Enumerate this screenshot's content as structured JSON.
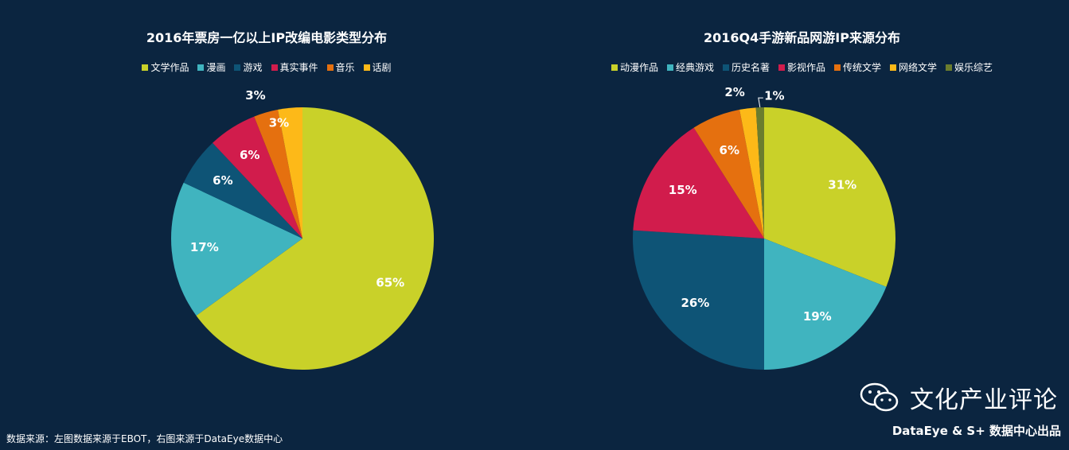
{
  "chart_data": [
    {
      "type": "pie",
      "title": "2016年票房一亿以上IP改编电影类型分布",
      "slices": [
        {
          "name": "文学作品",
          "value": 65,
          "label": "65%",
          "color": "#c9d129"
        },
        {
          "name": "漫画",
          "value": 17,
          "label": "17%",
          "color": "#40b4bf"
        },
        {
          "name": "游戏",
          "value": 6,
          "label": "6%",
          "color": "#0e5476"
        },
        {
          "name": "真实事件",
          "value": 6,
          "label": "6%",
          "color": "#d11c4c"
        },
        {
          "name": "音乐",
          "value": 3,
          "label": "3%",
          "color": "#e5700f"
        },
        {
          "name": "话剧",
          "value": 3,
          "label": "3%",
          "color": "#fdb918"
        }
      ],
      "legend_position": "top"
    },
    {
      "type": "pie",
      "title": "2016Q4手游新品网游IP来源分布",
      "slices": [
        {
          "name": "动漫作品",
          "value": 31,
          "label": "31%",
          "color": "#c9d129"
        },
        {
          "name": "经典游戏",
          "value": 19,
          "label": "19%",
          "color": "#40b4bf"
        },
        {
          "name": "历史名著",
          "value": 26,
          "label": "26%",
          "color": "#0e5476"
        },
        {
          "name": "影视作品",
          "value": 15,
          "label": "15%",
          "color": "#d11c4c"
        },
        {
          "name": "传统文学",
          "value": 6,
          "label": "6%",
          "color": "#e5700f"
        },
        {
          "name": "网络文学",
          "value": 2,
          "label": "2%",
          "color": "#fdb918"
        },
        {
          "name": "娱乐综艺",
          "value": 1,
          "label": "1%",
          "color": "#6b7d2e"
        }
      ],
      "legend_position": "top"
    }
  ],
  "footer": {
    "source": "数据来源：左图数据来源于EBOT，右图来源于DataEye数据中心",
    "brand": "文化产业评论",
    "credit": "DataEye & S+ 数据中心出品"
  },
  "icons": {
    "brand_icon": "wechat-icon"
  }
}
